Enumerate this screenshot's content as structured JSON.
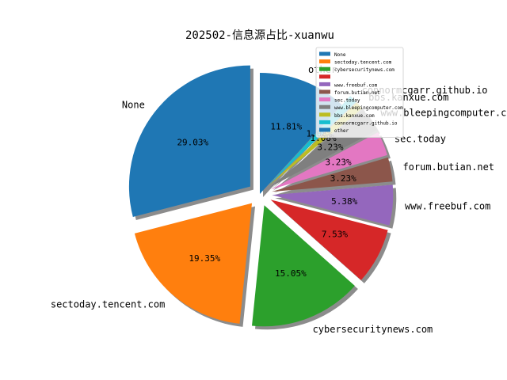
{
  "chart_data": {
    "type": "pie",
    "title": "202502-信息源占比-xuanwu",
    "slices": [
      {
        "label": "None",
        "value": 29.03,
        "pct_label": "29.03%",
        "color": "#1f77b4"
      },
      {
        "label": "sectoday.tencent.com",
        "value": 19.35,
        "pct_label": "19.35%",
        "color": "#ff7f0e"
      },
      {
        "label": "cybersecuritynews.com",
        "value": 15.05,
        "pct_label": "15.05%",
        "color": "#2ca02c"
      },
      {
        "label": "",
        "value": 7.53,
        "pct_label": "7.53%",
        "color": "#d62728"
      },
      {
        "label": "www.freebuf.com",
        "value": 5.38,
        "pct_label": "5.38%",
        "color": "#9467bd"
      },
      {
        "label": "forum.butian.net",
        "value": 3.23,
        "pct_label": "3.23%",
        "color": "#8c564b"
      },
      {
        "label": "sec.today",
        "value": 3.23,
        "pct_label": "3.23%",
        "color": "#e377c2"
      },
      {
        "label": "www.bleepingcomputer.com",
        "value": 3.23,
        "pct_label": "3.23%",
        "color": "#7f7f7f"
      },
      {
        "label": "bbs.kanxue.com",
        "value": 1.08,
        "pct_label": "1.08%",
        "color": "#bcbd22"
      },
      {
        "label": "connormcgarr.github.io",
        "value": 1.08,
        "pct_label": "1.08%",
        "color": "#17becf"
      },
      {
        "label": "other",
        "value": 11.81,
        "pct_label": "11.81%",
        "color": "#1f77b4"
      }
    ],
    "legend": {
      "placement": "top-right"
    },
    "shadow": true,
    "exploded": true
  }
}
